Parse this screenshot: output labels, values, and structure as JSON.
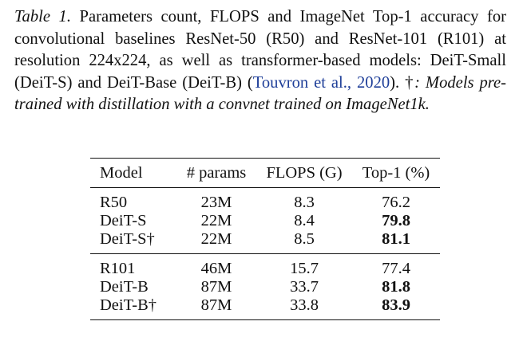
{
  "caption": {
    "label": "Table 1.",
    "text": " Parameters count, FLOPS and ImageNet Top-1 accuracy for convolutional baselines ResNet-50 (R50) and ResNet-101 (R101) at resolution 224x224, as well as transformer-based models: DeiT-Small (DeiT-S) and DeiT-Base (DeiT-B) (",
    "citation": "Touvron et al., 2020",
    "after_citation": ").  †",
    "note": ": Models pre-trained with distillation with a convnet trained on ImageNet1k."
  },
  "table": {
    "headers": [
      "Model",
      "# params",
      "FLOPS (G)",
      "Top-1 (%)"
    ],
    "groups": [
      [
        {
          "model": "R50",
          "params": "23M",
          "flops": "8.3",
          "top1": "76.2",
          "bold": false
        },
        {
          "model": "DeiT-S",
          "params": "22M",
          "flops": "8.4",
          "top1": "79.8",
          "bold": true
        },
        {
          "model": "DeiT-S†",
          "params": "22M",
          "flops": "8.5",
          "top1": "81.1",
          "bold": true
        }
      ],
      [
        {
          "model": "R101",
          "params": "46M",
          "flops": "15.7",
          "top1": "77.4",
          "bold": false
        },
        {
          "model": "DeiT-B",
          "params": "87M",
          "flops": "33.7",
          "top1": "81.8",
          "bold": true
        },
        {
          "model": "DeiT-B†",
          "params": "87M",
          "flops": "33.8",
          "top1": "83.9",
          "bold": true
        }
      ]
    ]
  }
}
